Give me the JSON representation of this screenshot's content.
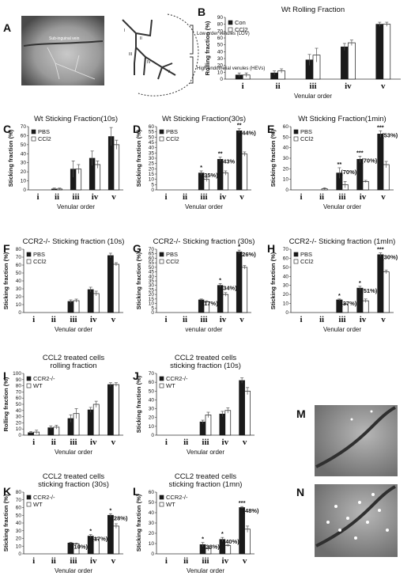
{
  "panel_a": {
    "label": "A",
    "photo_text": "Sub-inguinal vein",
    "bracket_low": "Low order venules (LOV)",
    "bracket_high": "High endothelial venules (HEVs)",
    "roman": [
      "I",
      "II",
      "III",
      "IV",
      "V"
    ]
  },
  "panel_m": {
    "label": "M"
  },
  "panel_n": {
    "label": "N"
  },
  "chart_data": [
    {
      "id": "B",
      "type": "bar",
      "title": "Wt Rolling Fraction",
      "ylabel": "Rolling fraction (%)",
      "xlabel": "Venular order",
      "categories": [
        "i",
        "ii",
        "iii",
        "iv",
        "v"
      ],
      "ylim": [
        0,
        90
      ],
      "yticks": [
        0,
        10,
        20,
        30,
        40,
        50,
        60,
        70,
        80,
        90
      ],
      "legend": "top-left",
      "series": [
        {
          "name": "Con",
          "values": [
            6,
            9,
            28,
            47,
            80
          ],
          "errors": [
            3,
            3,
            8,
            5,
            3
          ]
        },
        {
          "name": "CCl2",
          "values": [
            6,
            12,
            35,
            53,
            80
          ],
          "errors": [
            3,
            3,
            10,
            4,
            3
          ]
        }
      ],
      "annotations": []
    },
    {
      "id": "C",
      "type": "bar",
      "title": "Wt Sticking Fraction(10s)",
      "ylabel": "Sticking fraction (%)",
      "xlabel": "Venular order",
      "categories": [
        "i",
        "ii",
        "iii",
        "iv",
        "v"
      ],
      "ylim": [
        0,
        70
      ],
      "yticks": [
        0,
        10,
        20,
        30,
        40,
        50,
        60,
        70
      ],
      "legend": "top-left",
      "series": [
        {
          "name": "PBS",
          "values": [
            0,
            1,
            23,
            35,
            59
          ],
          "errors": [
            0,
            1,
            9,
            8,
            10
          ]
        },
        {
          "name": "CCl2",
          "values": [
            0,
            1,
            23,
            28,
            50
          ],
          "errors": [
            0,
            1,
            5,
            4,
            5
          ]
        }
      ],
      "annotations": []
    },
    {
      "id": "D",
      "type": "bar",
      "title": "Wt Sticking Fraction(30s)",
      "ylabel": "Sticking fraction (%)",
      "xlabel": "Venular order",
      "categories": [
        "i",
        "ii",
        "iii",
        "iv",
        "v"
      ],
      "ylim": [
        0,
        60
      ],
      "yticks": [
        0,
        5,
        10,
        15,
        20,
        25,
        30,
        35,
        40,
        45,
        50,
        55,
        60
      ],
      "legend": "top-left",
      "series": [
        {
          "name": "PBS",
          "values": [
            0,
            0,
            16,
            29,
            56
          ],
          "errors": [
            0,
            0,
            2,
            2,
            2
          ]
        },
        {
          "name": "CCl2",
          "values": [
            0,
            0,
            10,
            16,
            34
          ],
          "errors": [
            0,
            0,
            2,
            2,
            2
          ]
        }
      ],
      "annotations": [
        {
          "cat": 2,
          "star": "*",
          "pct": "(35%)"
        },
        {
          "cat": 3,
          "star": "**",
          "pct": "43%"
        },
        {
          "cat": 4,
          "star": "**",
          "pct": "(44%)"
        }
      ]
    },
    {
      "id": "E",
      "type": "bar",
      "title": "Wt Sticking Fraction(1min)",
      "ylabel": "Sticking fraction (%)",
      "xlabel": "Venular order",
      "categories": [
        "i",
        "ii",
        "iii",
        "iv",
        "v"
      ],
      "ylim": [
        0,
        60
      ],
      "yticks": [
        0,
        10,
        20,
        30,
        40,
        50,
        60
      ],
      "legend": "top-left",
      "series": [
        {
          "name": "PBS",
          "values": [
            0,
            0,
            16,
            29,
            53
          ],
          "errors": [
            0,
            0,
            5,
            3,
            3
          ]
        },
        {
          "name": "CCl2",
          "values": [
            0,
            1,
            5,
            8,
            24
          ],
          "errors": [
            0,
            1,
            3,
            1,
            3
          ]
        }
      ],
      "annotations": [
        {
          "cat": 2,
          "star": "**",
          "pct": "(70%)"
        },
        {
          "cat": 3,
          "star": "***",
          "pct": "(70%)"
        },
        {
          "cat": 4,
          "star": "***",
          "pct": "(53%)"
        }
      ]
    },
    {
      "id": "F",
      "type": "bar",
      "title": "CCR2-/- Sticking fraction (10s)",
      "ylabel": "Sticking fraction (%)",
      "xlabel": "Venular order",
      "categories": [
        "i",
        "ii",
        "iii",
        "iv",
        "v"
      ],
      "ylim": [
        0,
        80
      ],
      "yticks": [
        0,
        10,
        20,
        30,
        40,
        50,
        60,
        70,
        80
      ],
      "legend": "top-left",
      "series": [
        {
          "name": "PBS",
          "values": [
            0,
            0,
            14,
            29,
            72
          ],
          "errors": [
            0,
            0,
            2,
            3,
            3
          ]
        },
        {
          "name": "CCl2",
          "values": [
            0,
            0,
            15,
            24,
            61
          ],
          "errors": [
            0,
            0,
            2,
            3,
            2
          ]
        }
      ],
      "annotations": []
    },
    {
      "id": "G",
      "type": "bar",
      "title": "CCR2-/- Sticking fraction (30s)",
      "ylabel": "Sticking fraction (%)",
      "xlabel": "venular order",
      "categories": [
        "i",
        "ii",
        "iii",
        "iv",
        "v"
      ],
      "ylim": [
        0,
        70
      ],
      "yticks": [
        0,
        5,
        10,
        15,
        20,
        25,
        30,
        35,
        40,
        45,
        50,
        55,
        60,
        65,
        70
      ],
      "legend": "top-left",
      "series": [
        {
          "name": "PBS",
          "values": [
            0,
            0,
            14,
            30,
            67
          ],
          "errors": [
            0,
            0,
            1,
            2,
            2
          ]
        },
        {
          "name": "CCl2",
          "values": [
            0,
            0,
            12,
            20,
            50
          ],
          "errors": [
            0,
            0,
            1,
            2,
            2
          ]
        }
      ],
      "annotations": [
        {
          "cat": 2,
          "star": "",
          "pct": "(17%)"
        },
        {
          "cat": 3,
          "star": "*",
          "pct": "(34%)"
        },
        {
          "cat": 4,
          "star": "*",
          "pct": "(26%)"
        }
      ]
    },
    {
      "id": "H",
      "type": "bar",
      "title": "CCR2-/- Sticking fraction (1mIn)",
      "ylabel": "Sticking fraction (%)",
      "xlabel": "Venular order",
      "categories": [
        "i",
        "ii",
        "iii",
        "iv",
        "v"
      ],
      "ylim": [
        0,
        70
      ],
      "yticks": [
        0,
        10,
        20,
        30,
        40,
        50,
        60,
        70
      ],
      "legend": "top-left",
      "series": [
        {
          "name": "PBS",
          "values": [
            0,
            0,
            14,
            27,
            64
          ],
          "errors": [
            0,
            0,
            1,
            2,
            2
          ]
        },
        {
          "name": "CCl2",
          "values": [
            0,
            0,
            9,
            13,
            45
          ],
          "errors": [
            0,
            0,
            1,
            2,
            2
          ]
        }
      ],
      "annotations": [
        {
          "cat": 2,
          "star": "*",
          "pct": "(37%)"
        },
        {
          "cat": 3,
          "star": "*",
          "pct": "(51%)"
        },
        {
          "cat": 4,
          "star": "***",
          "pct": "(30%)"
        }
      ]
    },
    {
      "id": "I",
      "type": "bar",
      "title": [
        "CCL2 treated cells",
        "rolling fraction"
      ],
      "ylabel": "Rolling fraction (%)",
      "xlabel": "Venular order",
      "categories": [
        "i",
        "ii",
        "iii",
        "iv",
        "v"
      ],
      "ylim": [
        0,
        100
      ],
      "yticks": [
        0,
        10,
        20,
        30,
        40,
        50,
        60,
        70,
        80,
        90,
        100
      ],
      "legend": "top-left",
      "series": [
        {
          "name": "CCR2-/-",
          "values": [
            4,
            12,
            27,
            41,
            82
          ],
          "errors": [
            2,
            3,
            6,
            4,
            3
          ]
        },
        {
          "name": "WT",
          "values": [
            5,
            13,
            35,
            50,
            82
          ],
          "errors": [
            3,
            3,
            8,
            5,
            3
          ]
        }
      ],
      "annotations": []
    },
    {
      "id": "J",
      "type": "bar",
      "title": [
        "CCL2 treated cells",
        "sticking fraction (10s)"
      ],
      "ylabel": "Sticking fraction (%)",
      "xlabel": "Venular order",
      "categories": [
        "i",
        "ii",
        "iii",
        "iv",
        "v"
      ],
      "ylim": [
        0,
        70
      ],
      "yticks": [
        0,
        10,
        20,
        30,
        40,
        50,
        60,
        70
      ],
      "legend": "top-left",
      "series": [
        {
          "name": "CCR2-/-",
          "values": [
            0,
            0,
            15,
            24,
            62
          ],
          "errors": [
            0,
            0,
            2,
            3,
            3
          ]
        },
        {
          "name": "WT",
          "values": [
            0,
            0,
            23,
            28,
            50
          ],
          "errors": [
            0,
            0,
            3,
            3,
            4
          ]
        }
      ],
      "annotations": []
    },
    {
      "id": "K",
      "type": "bar",
      "title": [
        "CCL2 treated cells",
        "sticking fraction (30s)"
      ],
      "ylabel": "Sticking fraction (%)",
      "xlabel": "Venular order",
      "categories": [
        "i",
        "ii",
        "iii",
        "iv",
        "v"
      ],
      "ylim": [
        0,
        80
      ],
      "yticks": [
        0,
        10,
        20,
        30,
        40,
        50,
        60,
        70,
        80
      ],
      "legend": "top-left",
      "series": [
        {
          "name": "CCR2-/-",
          "values": [
            0,
            0,
            14,
            23,
            50
          ],
          "errors": [
            0,
            0,
            1,
            2,
            2
          ]
        },
        {
          "name": "WT",
          "values": [
            0,
            0,
            13,
            19,
            36
          ],
          "errors": [
            0,
            0,
            1,
            2,
            3
          ]
        }
      ],
      "annotations": [
        {
          "cat": 2,
          "star": "",
          "pct": "(10%)"
        },
        {
          "cat": 3,
          "star": "*",
          "pct": "(17%)"
        },
        {
          "cat": 4,
          "star": "*",
          "pct": "(28%)"
        }
      ]
    },
    {
      "id": "L",
      "type": "bar",
      "title": [
        "CCL2  treated cells",
        "sticking fraction (1mn)"
      ],
      "ylabel": "Sticking fraction (%)",
      "xlabel": "Venular order",
      "categories": [
        "i",
        "ii",
        "iii",
        "iv",
        "v"
      ],
      "ylim": [
        0,
        60
      ],
      "yticks": [
        0,
        10,
        20,
        30,
        40,
        50,
        60
      ],
      "legend": "top-left",
      "series": [
        {
          "name": "CCR2-/-",
          "values": [
            0,
            0,
            9,
            14,
            45
          ],
          "errors": [
            0,
            0,
            2,
            2,
            1
          ]
        },
        {
          "name": "WT",
          "values": [
            0,
            0,
            5,
            8,
            24
          ],
          "errors": [
            0,
            0,
            2,
            1,
            3
          ]
        }
      ],
      "annotations": [
        {
          "cat": 2,
          "star": "*",
          "pct": "(38%)"
        },
        {
          "cat": 3,
          "star": "*",
          "pct": "(40%)"
        },
        {
          "cat": 4,
          "star": "***",
          "pct": "(48%)"
        }
      ]
    }
  ]
}
